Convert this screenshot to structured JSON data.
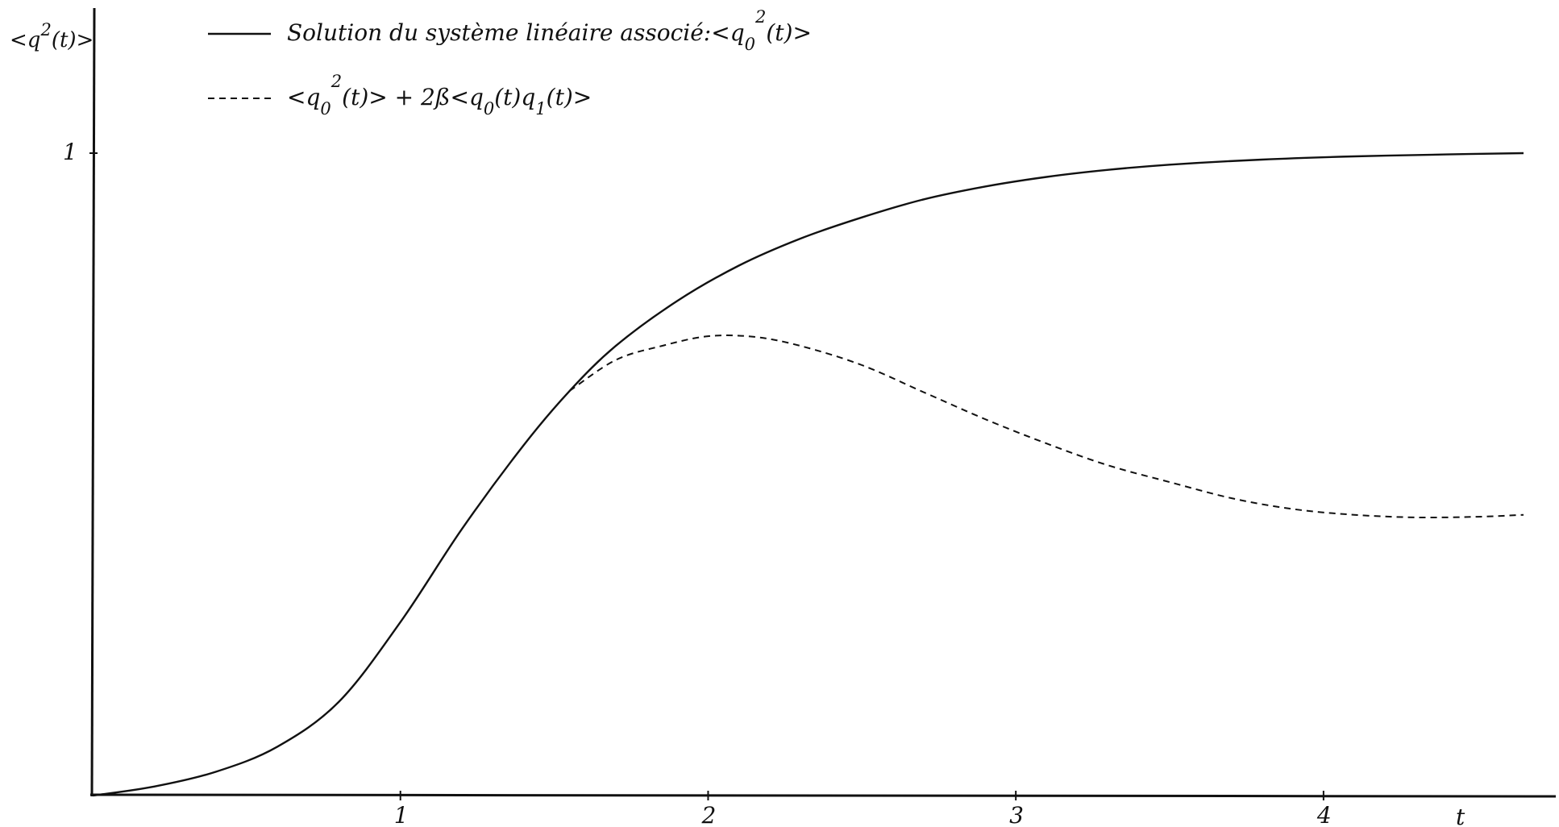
{
  "chart_data": {
    "type": "line",
    "xlabel": "t",
    "ylabel": {
      "prefix": "<q",
      "sup": "2",
      "suffix": "(t)>"
    },
    "xlim": [
      0,
      4.65
    ],
    "ylim": [
      0,
      1
    ],
    "x_ticks": [
      1,
      2,
      3,
      4
    ],
    "x_tick_labels": [
      "1",
      "2",
      "3",
      "4"
    ],
    "y_ticks": [
      1
    ],
    "y_tick_labels": [
      "1"
    ],
    "grid": false,
    "legend_position": "top-left",
    "legend": [
      {
        "style": "solid",
        "parts": [
          {
            "t": "Solution du système linéaire associé:<q"
          },
          {
            "t": "0",
            "pos": "sub"
          },
          {
            "t": "2",
            "pos": "sup"
          },
          {
            "t": "(t)>"
          }
        ]
      },
      {
        "style": "dashed",
        "parts": [
          {
            "t": "<q"
          },
          {
            "t": "0",
            "pos": "sub"
          },
          {
            "t": "2",
            "pos": "sup"
          },
          {
            "t": "(t)> + 2ß<q"
          },
          {
            "t": "0",
            "pos": "sub"
          },
          {
            "t": "(t)q"
          },
          {
            "t": "1",
            "pos": "sub"
          },
          {
            "t": "(t)>"
          }
        ]
      }
    ],
    "series": [
      {
        "style": "solid",
        "x": [
          0,
          0.2,
          0.4,
          0.6,
          0.8,
          1.0,
          1.2,
          1.4,
          1.55,
          1.7,
          1.9,
          2.1,
          2.3,
          2.5,
          2.7,
          2.9,
          3.1,
          3.3,
          3.5,
          3.8,
          4.1,
          4.4,
          4.65
        ],
        "y": [
          0,
          0.014,
          0.037,
          0.076,
          0.146,
          0.27,
          0.415,
          0.545,
          0.63,
          0.7,
          0.77,
          0.825,
          0.867,
          0.9,
          0.928,
          0.948,
          0.963,
          0.974,
          0.982,
          0.99,
          0.995,
          0.998,
          1.0
        ]
      },
      {
        "style": "dashed",
        "x": [
          1.55,
          1.7,
          1.85,
          2.0,
          2.15,
          2.3,
          2.5,
          2.7,
          2.9,
          3.1,
          3.3,
          3.5,
          3.7,
          3.9,
          4.1,
          4.3,
          4.5,
          4.65
        ],
        "y": [
          0.63,
          0.678,
          0.7,
          0.715,
          0.714,
          0.7,
          0.67,
          0.628,
          0.586,
          0.548,
          0.514,
          0.488,
          0.463,
          0.446,
          0.437,
          0.433,
          0.434,
          0.437
        ]
      }
    ]
  }
}
